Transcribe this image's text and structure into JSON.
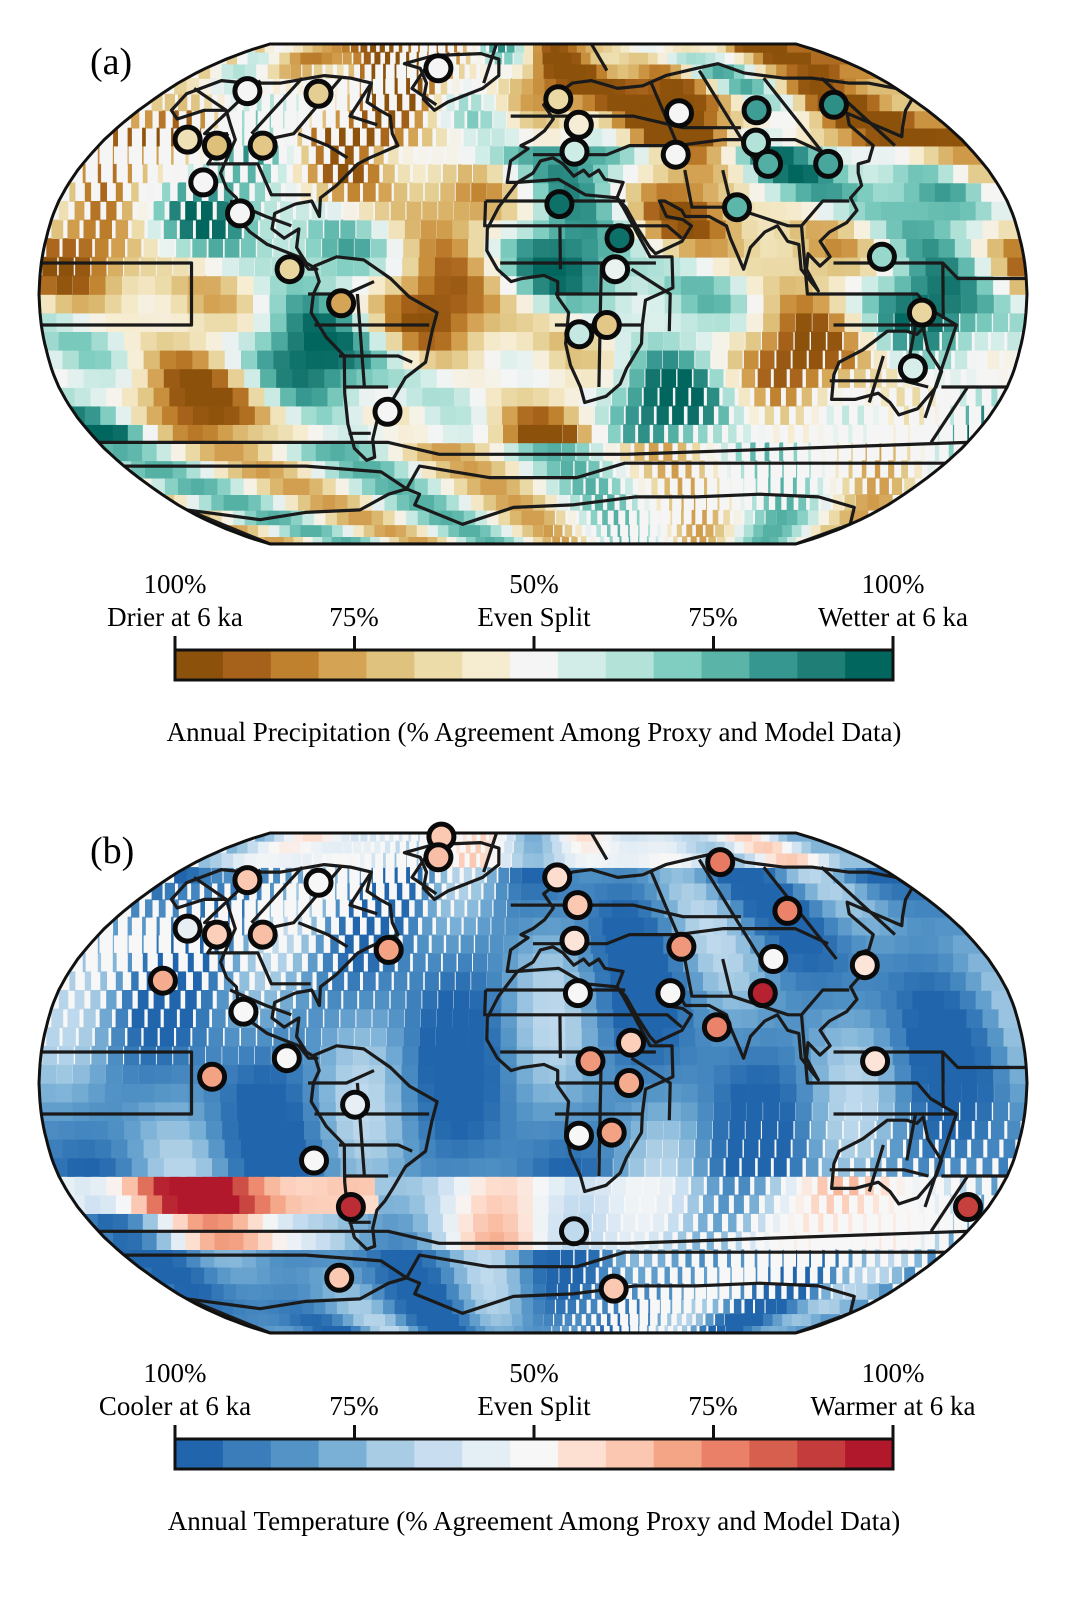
{
  "panels": [
    {
      "id": "a",
      "label": "(a)",
      "scheme": "brbg",
      "colorbar": {
        "ticks_top": [
          "100%",
          "50%",
          "100%"
        ],
        "ticks_bottom": [
          "Drier at 6 ka",
          "75%",
          "Even Split",
          "75%",
          "Wetter at 6 ka"
        ],
        "title": "Annual Precipitation (% Agreement Among Proxy and Model Data)",
        "colors": [
          "#8c510a",
          "#a6611a",
          "#bf812d",
          "#d4a354",
          "#dfc27d",
          "#ecdcaa",
          "#f6ecd0",
          "#f5f5f5",
          "#d2ede8",
          "#b2e2d8",
          "#80cdc1",
          "#5ab4a8",
          "#35978f",
          "#1f7f77",
          "#01665e"
        ]
      },
      "sites": [
        {
          "lon": -140,
          "lat": 67,
          "v": 0.5
        },
        {
          "lon": -104,
          "lat": 66,
          "v": 0.32
        },
        {
          "lon": -52,
          "lat": 76,
          "v": 0.5
        },
        {
          "lon": 12,
          "lat": 64,
          "v": 0.35
        },
        {
          "lon": 20,
          "lat": 55,
          "v": 0.44
        },
        {
          "lon": 66,
          "lat": 59,
          "v": 0.5
        },
        {
          "lon": 102,
          "lat": 60,
          "v": 0.84
        },
        {
          "lon": 140,
          "lat": 62,
          "v": 0.88
        },
        {
          "lon": -145,
          "lat": 50,
          "v": 0.38
        },
        {
          "lon": -131,
          "lat": 48,
          "v": 0.28
        },
        {
          "lon": -112,
          "lat": 48,
          "v": 0.3
        },
        {
          "lon": 17,
          "lat": 46,
          "v": 0.58
        },
        {
          "lon": 58,
          "lat": 45,
          "v": 0.5
        },
        {
          "lon": 93,
          "lat": 49,
          "v": 0.64
        },
        {
          "lon": 94,
          "lat": 42,
          "v": 0.8
        },
        {
          "lon": 118,
          "lat": 42,
          "v": 0.82
        },
        {
          "lon": -128,
          "lat": 36,
          "v": 0.5
        },
        {
          "lon": 10,
          "lat": 29,
          "v": 0.97
        },
        {
          "lon": 77,
          "lat": 28,
          "v": 0.78
        },
        {
          "lon": -110,
          "lat": 26,
          "v": 0.5
        },
        {
          "lon": 32,
          "lat": 18,
          "v": 0.97
        },
        {
          "lon": -89,
          "lat": 8,
          "v": 0.34
        },
        {
          "lon": 30,
          "lat": 8,
          "v": 0.52
        },
        {
          "lon": 128,
          "lat": 12,
          "v": 0.68
        },
        {
          "lon": -70,
          "lat": -3,
          "v": 0.22
        },
        {
          "lon": 142,
          "lat": -6,
          "v": 0.34
        },
        {
          "lon": 27,
          "lat": -10,
          "v": 0.3
        },
        {
          "lon": 17,
          "lat": -13,
          "v": 0.6
        },
        {
          "lon": 142,
          "lat": -24,
          "v": 0.56
        },
        {
          "lon": -57,
          "lat": -38,
          "v": 0.5
        }
      ]
    },
    {
      "id": "b",
      "label": "(b)",
      "scheme": "rdbu",
      "colorbar": {
        "ticks_top": [
          "100%",
          "50%",
          "100%"
        ],
        "ticks_bottom": [
          "Cooler at 6 ka",
          "75%",
          "Even Split",
          "75%",
          "Warmer at 6 ka"
        ],
        "title": "Annual Temperature (% Agreement Among Proxy and Model Data)",
        "colors": [
          "#2166ac",
          "#3a7dba",
          "#5393c6",
          "#7ab0d6",
          "#a7cce4",
          "#c8def0",
          "#e4eef5",
          "#f7f7f7",
          "#fde0d2",
          "#fbc7b0",
          "#f4a585",
          "#ea8068",
          "#d6604d",
          "#c43c3c",
          "#b2182b"
        ]
      },
      "sites": [
        {
          "lon": -60,
          "lat": 87,
          "v": 0.64
        },
        {
          "lon": -140,
          "lat": 67,
          "v": 0.64
        },
        {
          "lon": -104,
          "lat": 66,
          "v": 0.5
        },
        {
          "lon": -52,
          "lat": 76,
          "v": 0.66
        },
        {
          "lon": 12,
          "lat": 68,
          "v": 0.58
        },
        {
          "lon": 100,
          "lat": 74,
          "v": 0.8
        },
        {
          "lon": 20,
          "lat": 58,
          "v": 0.64
        },
        {
          "lon": 112,
          "lat": 56,
          "v": 0.78
        },
        {
          "lon": -145,
          "lat": 50,
          "v": 0.44
        },
        {
          "lon": -131,
          "lat": 48,
          "v": 0.62
        },
        {
          "lon": -112,
          "lat": 48,
          "v": 0.66
        },
        {
          "lon": 17,
          "lat": 46,
          "v": 0.56
        },
        {
          "lon": -58,
          "lat": 43,
          "v": 0.72
        },
        {
          "lon": 60,
          "lat": 44,
          "v": 0.74
        },
        {
          "lon": 95,
          "lat": 40,
          "v": 0.5
        },
        {
          "lon": 130,
          "lat": 38,
          "v": 0.56
        },
        {
          "lon": -142,
          "lat": 33,
          "v": 0.7
        },
        {
          "lon": 17,
          "lat": 29,
          "v": 0.5
        },
        {
          "lon": 52,
          "lat": 29,
          "v": 0.5
        },
        {
          "lon": 87,
          "lat": 29,
          "v": 0.98
        },
        {
          "lon": -108,
          "lat": 23,
          "v": 0.5
        },
        {
          "lon": 68,
          "lat": 18,
          "v": 0.78
        },
        {
          "lon": 36,
          "lat": 13,
          "v": 0.62
        },
        {
          "lon": -90,
          "lat": 8,
          "v": 0.5
        },
        {
          "lon": 21,
          "lat": 7,
          "v": 0.74
        },
        {
          "lon": 125,
          "lat": 7,
          "v": 0.56
        },
        {
          "lon": -117,
          "lat": 2,
          "v": 0.72
        },
        {
          "lon": 35,
          "lat": 0,
          "v": 0.7
        },
        {
          "lon": -65,
          "lat": -7,
          "v": 0.44
        },
        {
          "lon": 17,
          "lat": -17,
          "v": 0.5
        },
        {
          "lon": 29,
          "lat": -16,
          "v": 0.72
        },
        {
          "lon": -82,
          "lat": -25,
          "v": 0.5
        },
        {
          "lon": -72,
          "lat": -40,
          "v": 0.96
        },
        {
          "lon": 172,
          "lat": -40,
          "v": 0.92
        },
        {
          "lon": 17,
          "lat": -48,
          "v": 0.34
        },
        {
          "lon": -92,
          "lat": -64,
          "v": 0.64
        },
        {
          "lon": 40,
          "lat": -68,
          "v": 0.64
        }
      ]
    }
  ]
}
